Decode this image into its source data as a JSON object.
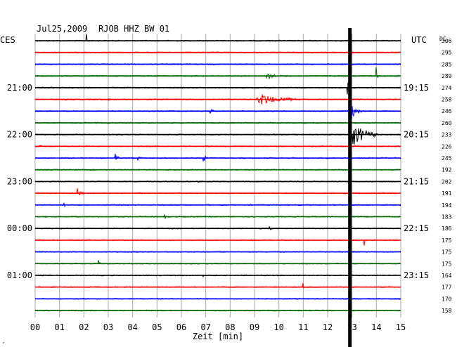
{
  "header": {
    "date": "Jul25,2009",
    "station": "RJOB HHZ BW 01",
    "left_zone": "CES",
    "right_zone": "UTC",
    "dc_label": "DC"
  },
  "colors": {
    "black": "#000000",
    "red": "#ff0000",
    "blue": "#0000ff",
    "green": "#006600",
    "grid": "#aaaaaa"
  },
  "chart_data": {
    "type": "line",
    "xlabel": "Zeit [min]",
    "xlim": [
      0,
      15
    ],
    "x_ticks": [
      "00",
      "01",
      "02",
      "03",
      "04",
      "05",
      "06",
      "07",
      "08",
      "09",
      "10",
      "11",
      "12",
      "13",
      "14",
      "15"
    ],
    "trace_color_cycle": [
      "black",
      "red",
      "blue",
      "green"
    ],
    "left_time_labels": [
      {
        "trace": 4,
        "text": "21:00"
      },
      {
        "trace": 8,
        "text": "22:00"
      },
      {
        "trace": 12,
        "text": "23:00"
      },
      {
        "trace": 16,
        "text": "00:00"
      },
      {
        "trace": 20,
        "text": "01:00"
      }
    ],
    "right_time_labels": [
      {
        "trace": 4,
        "text": "19:15"
      },
      {
        "trace": 8,
        "text": "20:15"
      },
      {
        "trace": 12,
        "text": "21:15"
      },
      {
        "trace": 16,
        "text": "22:15"
      },
      {
        "trace": 20,
        "text": "23:15"
      }
    ],
    "dc_offsets": [
      306,
      295,
      285,
      289,
      274,
      258,
      246,
      260,
      233,
      226,
      245,
      192,
      202,
      191,
      194,
      183,
      186,
      175,
      175,
      175,
      164,
      177,
      170,
      158
    ],
    "events": [
      {
        "trace": 0,
        "minute": 2.1,
        "amp": 12,
        "dur": 0.1
      },
      {
        "trace": 1,
        "minute": 12.9,
        "amp": 8,
        "dur": 0.2
      },
      {
        "trace": 3,
        "minute": 9.5,
        "amp": 5,
        "dur": 0.8
      },
      {
        "trace": 3,
        "minute": 14.0,
        "amp": 10,
        "dur": 0.1
      },
      {
        "trace": 4,
        "minute": 12.8,
        "amp": 14,
        "dur": 0.2
      },
      {
        "trace": 5,
        "minute": 3.0,
        "amp": 7,
        "dur": 0.1
      },
      {
        "trace": 5,
        "minute": 9.1,
        "amp": 10,
        "dur": 1.8
      },
      {
        "trace": 6,
        "minute": 7.2,
        "amp": 4,
        "dur": 0.2
      },
      {
        "trace": 6,
        "minute": 12.9,
        "amp": 18,
        "dur": 0.5
      },
      {
        "trace": 8,
        "minute": 12.9,
        "amp": 22,
        "dur": 1.2
      },
      {
        "trace": 9,
        "minute": 0.2,
        "amp": 10,
        "dur": 0.1
      },
      {
        "trace": 10,
        "minute": 3.3,
        "amp": 6,
        "dur": 0.2
      },
      {
        "trace": 10,
        "minute": 4.2,
        "amp": 8,
        "dur": 0.1
      },
      {
        "trace": 10,
        "minute": 6.9,
        "amp": 7,
        "dur": 0.2
      },
      {
        "trace": 13,
        "minute": 1.7,
        "amp": 9,
        "dur": 0.3
      },
      {
        "trace": 14,
        "minute": 1.2,
        "amp": 5,
        "dur": 0.1
      },
      {
        "trace": 15,
        "minute": 5.3,
        "amp": 8,
        "dur": 0.1
      },
      {
        "trace": 16,
        "minute": 9.6,
        "amp": 4,
        "dur": 0.2
      },
      {
        "trace": 17,
        "minute": 13.5,
        "amp": 16,
        "dur": 0.1
      },
      {
        "trace": 19,
        "minute": 2.6,
        "amp": 5,
        "dur": 0.1
      },
      {
        "trace": 20,
        "minute": 6.9,
        "amp": 4,
        "dur": 0.1
      },
      {
        "trace": 21,
        "minute": 11.0,
        "amp": 6,
        "dur": 0.1
      }
    ],
    "teleseism_line": {
      "minute": 12.9
    }
  }
}
